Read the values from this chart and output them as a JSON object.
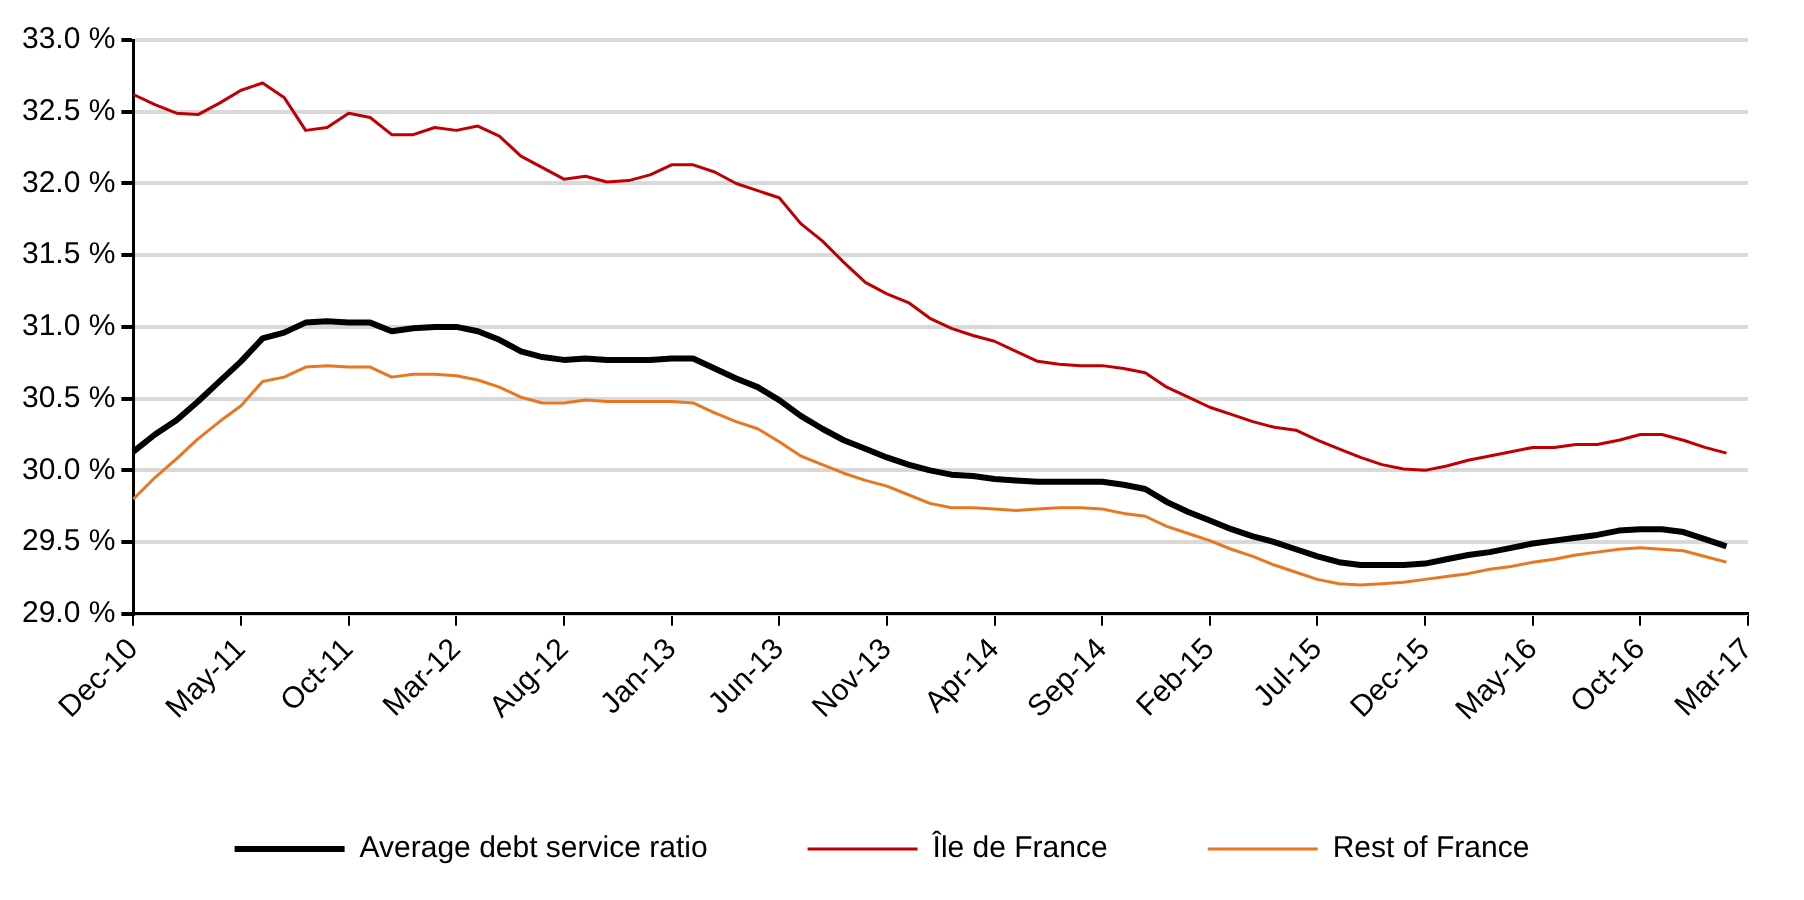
{
  "chart_data": {
    "type": "line",
    "categories": [
      "Dec-10",
      null,
      null,
      null,
      null,
      "May-11",
      null,
      null,
      null,
      null,
      "Oct-11",
      null,
      null,
      null,
      null,
      "Mar-12",
      null,
      null,
      null,
      null,
      "Aug-12",
      null,
      null,
      null,
      null,
      "Jan-13",
      null,
      null,
      null,
      null,
      "Jun-13",
      null,
      null,
      null,
      null,
      "Nov-13",
      null,
      null,
      null,
      null,
      "Apr-14",
      null,
      null,
      null,
      null,
      "Sep-14",
      null,
      null,
      null,
      null,
      "Feb-15",
      null,
      null,
      null,
      null,
      "Jul-15",
      null,
      null,
      null,
      null,
      "Dec-15",
      null,
      null,
      null,
      null,
      "May-16",
      null,
      null,
      null,
      null,
      "Oct-16",
      null,
      null,
      null,
      null,
      "Mar-17"
    ],
    "series": [
      {
        "name": "Average debt service ratio",
        "color": "#000000",
        "values": [
          30.13,
          30.25,
          30.35,
          30.48,
          30.62,
          30.76,
          30.92,
          30.96,
          31.03,
          31.04,
          31.03,
          31.03,
          30.97,
          30.99,
          31.0,
          31.0,
          30.97,
          30.91,
          30.83,
          30.79,
          30.77,
          30.78,
          30.77,
          30.77,
          30.77,
          30.78,
          30.78,
          30.71,
          30.64,
          30.58,
          30.49,
          30.38,
          30.29,
          30.21,
          30.15,
          30.09,
          30.04,
          30.0,
          29.97,
          29.96,
          29.94,
          29.93,
          29.92,
          29.92,
          29.92,
          29.92,
          29.9,
          29.87,
          29.78,
          29.71,
          29.65,
          29.59,
          29.54,
          29.5,
          29.45,
          29.4,
          29.36,
          29.34,
          29.34,
          29.34,
          29.35,
          29.38,
          29.41,
          29.43,
          29.46,
          29.49,
          29.51,
          29.53,
          29.55,
          29.58,
          29.59,
          29.59,
          29.57,
          29.52,
          29.47,
          null
        ]
      },
      {
        "name": "Île de France",
        "color": "#c00000",
        "values": [
          32.62,
          32.55,
          32.49,
          32.48,
          32.56,
          32.65,
          32.7,
          32.6,
          32.37,
          32.39,
          32.49,
          32.46,
          32.34,
          32.34,
          32.39,
          32.37,
          32.4,
          32.33,
          32.19,
          32.11,
          32.03,
          32.05,
          32.01,
          32.02,
          32.06,
          32.13,
          32.13,
          32.08,
          32.0,
          31.95,
          31.9,
          31.72,
          31.6,
          31.45,
          31.31,
          31.23,
          31.17,
          31.06,
          30.99,
          30.94,
          30.9,
          30.83,
          30.76,
          30.74,
          30.73,
          30.73,
          30.71,
          30.68,
          30.58,
          30.51,
          30.44,
          30.39,
          30.34,
          30.3,
          30.28,
          30.21,
          30.15,
          30.09,
          30.04,
          30.01,
          30.0,
          30.03,
          30.07,
          30.1,
          30.13,
          30.16,
          30.16,
          30.18,
          30.18,
          30.21,
          30.25,
          30.25,
          30.21,
          30.16,
          30.12,
          null
        ]
      },
      {
        "name": "Rest of France",
        "color": "#e87722",
        "values": [
          29.8,
          29.95,
          30.08,
          30.22,
          30.34,
          30.45,
          30.62,
          30.65,
          30.72,
          30.73,
          30.72,
          30.72,
          30.65,
          30.67,
          30.67,
          30.66,
          30.63,
          30.58,
          30.51,
          30.47,
          30.47,
          30.49,
          30.48,
          30.48,
          30.48,
          30.48,
          30.47,
          30.4,
          30.34,
          30.29,
          30.2,
          30.1,
          30.04,
          29.98,
          29.93,
          29.89,
          29.83,
          29.77,
          29.74,
          29.74,
          29.73,
          29.72,
          29.73,
          29.74,
          29.74,
          29.73,
          29.7,
          29.68,
          29.61,
          29.56,
          29.51,
          29.45,
          29.4,
          29.34,
          29.29,
          29.24,
          29.21,
          29.2,
          29.21,
          29.22,
          29.24,
          29.26,
          29.28,
          29.31,
          29.33,
          29.36,
          29.38,
          29.41,
          29.43,
          29.45,
          29.46,
          29.45,
          29.44,
          29.4,
          29.36,
          null
        ]
      }
    ],
    "ylim": [
      29.0,
      33.0
    ],
    "yticks": [
      {
        "value": 29.0,
        "label": "29.0 %"
      },
      {
        "value": 29.5,
        "label": "29.5 %"
      },
      {
        "value": 30.0,
        "label": "30.0 %"
      },
      {
        "value": 30.5,
        "label": "30.5 %"
      },
      {
        "value": 31.0,
        "label": "31.0 %"
      },
      {
        "value": 31.5,
        "label": "31.5 %"
      },
      {
        "value": 32.0,
        "label": "32.0 %"
      },
      {
        "value": 32.5,
        "label": "32.5 %"
      },
      {
        "value": 33.0,
        "label": "33.0 %"
      }
    ],
    "grid": "y",
    "legend": "bottom",
    "marker": "none",
    "line_style": "solid"
  }
}
